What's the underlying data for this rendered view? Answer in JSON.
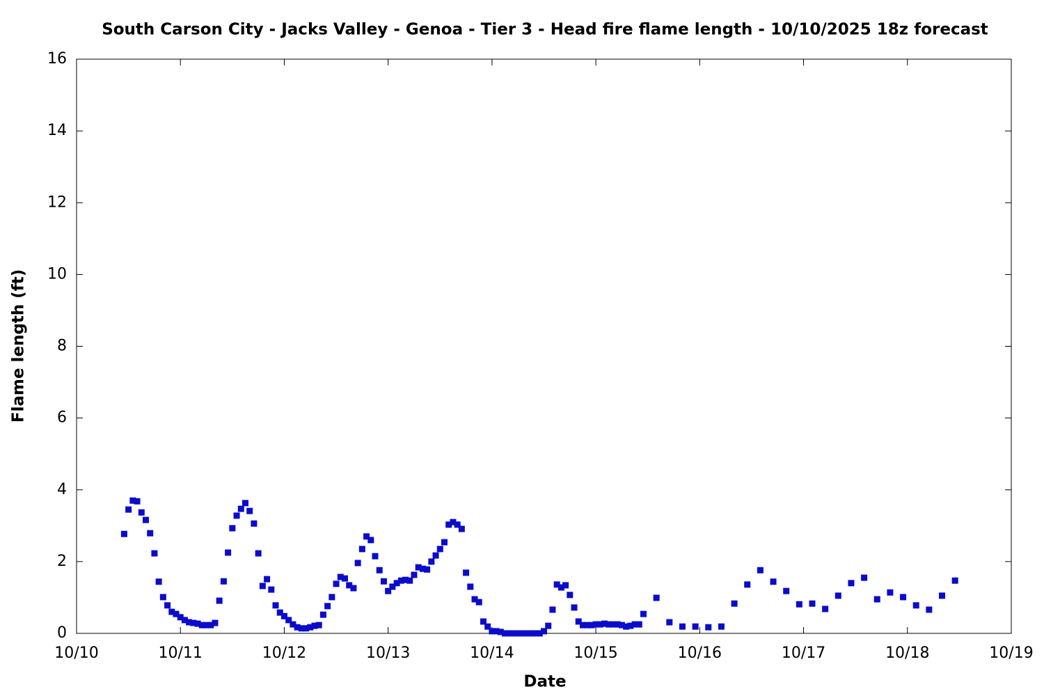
{
  "chart_data": {
    "type": "scatter",
    "title": "South Carson City - Jacks Valley - Genoa - Tier 3 - Head fire flame length - 10/10/2025 18z forecast",
    "x_label": "Date",
    "y_label": "Flame length (ft)",
    "xlim": [
      0,
      216
    ],
    "xticks": [
      {
        "value": 0,
        "label": "10/10"
      },
      {
        "value": 24,
        "label": "10/11"
      },
      {
        "value": 48,
        "label": "10/12"
      },
      {
        "value": 72,
        "label": "10/13"
      },
      {
        "value": 96,
        "label": "10/14"
      },
      {
        "value": 120,
        "label": "10/15"
      },
      {
        "value": 144,
        "label": "10/16"
      },
      {
        "value": 168,
        "label": "10/17"
      },
      {
        "value": 192,
        "label": "10/18"
      },
      {
        "value": 216,
        "label": "10/19"
      }
    ],
    "ylim": [
      0,
      16
    ],
    "yticks": [
      0,
      2,
      4,
      6,
      8,
      10,
      12,
      14,
      16
    ],
    "series": [
      {
        "color": "#0b0bcc",
        "x": [
          11,
          12,
          13,
          14,
          15,
          16,
          17,
          18,
          19,
          20,
          21,
          22,
          23,
          24,
          25,
          26,
          27,
          28,
          29,
          30,
          31,
          32,
          33,
          34,
          35,
          36,
          37,
          38,
          39,
          40,
          41,
          42,
          43,
          44,
          45,
          46,
          47,
          48,
          49,
          50,
          51,
          52,
          53,
          54,
          55,
          56,
          57,
          58,
          59,
          60,
          61,
          62,
          63,
          64,
          65,
          66,
          67,
          68,
          69,
          70,
          71,
          72,
          73,
          74,
          75,
          76,
          77,
          78,
          79,
          80,
          81,
          82,
          83,
          84,
          85,
          86,
          87,
          88,
          89,
          90,
          91,
          92,
          93,
          94,
          95,
          96,
          97,
          98,
          99,
          100,
          101,
          102,
          103,
          104,
          105,
          106,
          107,
          108,
          109,
          110,
          111,
          112,
          113,
          114,
          115,
          116,
          117,
          118,
          119,
          120,
          121,
          122,
          123,
          124,
          125,
          126,
          127,
          128,
          129,
          130,
          131,
          134,
          137,
          140,
          143,
          146,
          149,
          152,
          155,
          158,
          161,
          164,
          167,
          170,
          173,
          176,
          179,
          182,
          185,
          188,
          191,
          194,
          197,
          200,
          203
        ],
        "values": [
          2.77,
          3.45,
          3.7,
          3.68,
          3.37,
          3.16,
          2.79,
          2.23,
          1.44,
          1.01,
          0.78,
          0.6,
          0.54,
          0.45,
          0.37,
          0.31,
          0.29,
          0.27,
          0.23,
          0.23,
          0.23,
          0.29,
          0.91,
          1.45,
          2.25,
          2.93,
          3.28,
          3.47,
          3.63,
          3.41,
          3.06,
          2.23,
          1.32,
          1.51,
          1.22,
          0.78,
          0.58,
          0.48,
          0.37,
          0.25,
          0.17,
          0.14,
          0.14,
          0.17,
          0.21,
          0.23,
          0.52,
          0.76,
          1.01,
          1.38,
          1.57,
          1.53,
          1.34,
          1.26,
          1.96,
          2.35,
          2.7,
          2.6,
          2.15,
          1.76,
          1.45,
          1.18,
          1.3,
          1.4,
          1.47,
          1.49,
          1.47,
          1.63,
          1.84,
          1.8,
          1.78,
          2.0,
          2.17,
          2.35,
          2.54,
          3.03,
          3.1,
          3.03,
          2.91,
          1.69,
          1.3,
          0.95,
          0.87,
          0.33,
          0.19,
          0.06,
          0.06,
          0.04,
          0.0,
          0.0,
          0.0,
          0.0,
          0.0,
          0.0,
          0.0,
          0.0,
          0.0,
          0.06,
          0.21,
          0.66,
          1.36,
          1.28,
          1.34,
          1.07,
          0.72,
          0.33,
          0.23,
          0.23,
          0.23,
          0.25,
          0.25,
          0.27,
          0.25,
          0.25,
          0.25,
          0.23,
          0.19,
          0.21,
          0.25,
          0.25,
          0.54,
          0.99,
          0.31,
          0.19,
          0.19,
          0.17,
          0.19,
          0.83,
          1.36,
          1.76,
          1.44,
          1.18,
          0.81,
          0.83,
          0.68,
          1.05,
          1.4,
          1.55,
          0.95,
          1.14,
          1.01,
          0.78,
          0.66,
          1.05,
          1.47
        ]
      }
    ]
  }
}
